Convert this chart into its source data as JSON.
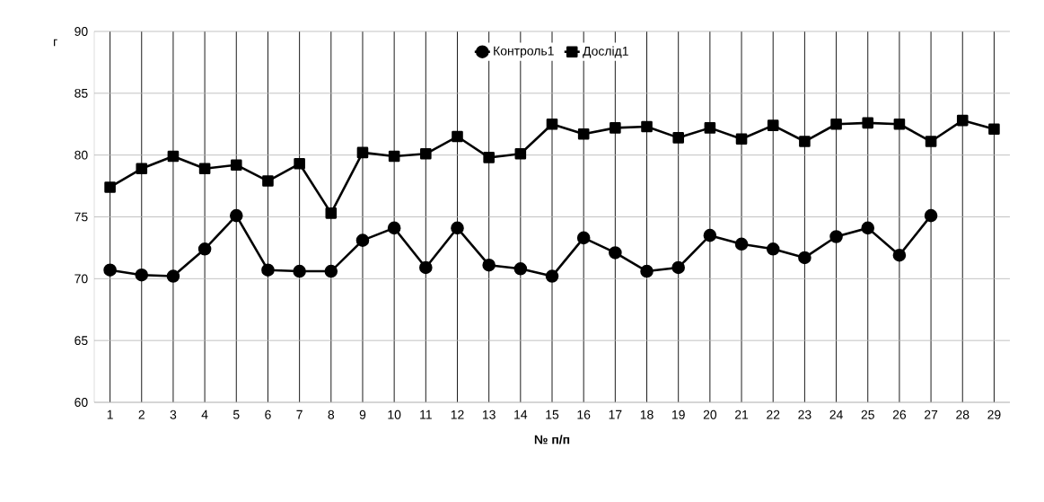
{
  "chart_data": {
    "type": "line",
    "xlabel": "№ п/п",
    "ylabel": "г",
    "categories": [
      "1",
      "2",
      "3",
      "4",
      "5",
      "6",
      "7",
      "8",
      "9",
      "10",
      "11",
      "12",
      "13",
      "14",
      "15",
      "16",
      "17",
      "18",
      "19",
      "20",
      "21",
      "22",
      "23",
      "24",
      "25",
      "26",
      "27",
      "28",
      "29"
    ],
    "series": [
      {
        "name": "Контроль1",
        "color": "#000000",
        "marker": "circle",
        "values": [
          70.7,
          70.3,
          70.2,
          72.4,
          75.1,
          70.7,
          70.6,
          70.6,
          73.1,
          74.1,
          70.9,
          74.1,
          71.1,
          70.8,
          70.2,
          73.3,
          72.1,
          70.6,
          70.9,
          73.5,
          72.8,
          72.4,
          71.7,
          73.4,
          74.1,
          71.9,
          75.1,
          null,
          null
        ]
      },
      {
        "name": "Дослід1",
        "color": "#000000",
        "marker": "square",
        "values": [
          77.4,
          78.9,
          79.9,
          78.9,
          79.2,
          77.9,
          79.3,
          75.3,
          80.2,
          79.9,
          80.1,
          81.5,
          79.8,
          80.1,
          82.5,
          81.7,
          82.2,
          82.3,
          81.4,
          82.2,
          81.3,
          82.4,
          81.1,
          82.5,
          82.6,
          82.5,
          81.1,
          82.8,
          82.1
        ]
      }
    ],
    "ylim": [
      60,
      90
    ],
    "yticks": [
      60,
      65,
      70,
      75,
      80,
      85,
      90
    ],
    "grid": true,
    "legend": "top"
  }
}
